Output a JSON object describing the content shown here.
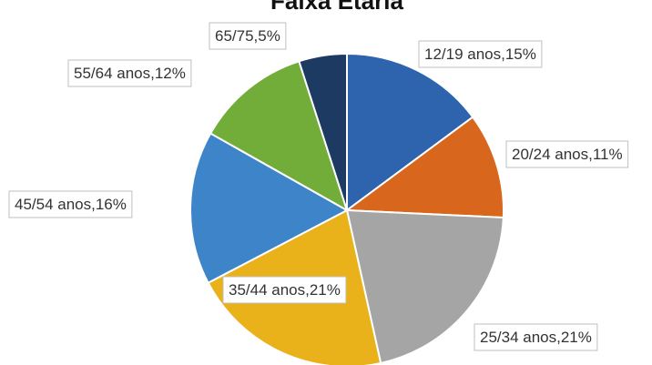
{
  "chart_data": {
    "type": "pie",
    "title": "Faixa Etária",
    "slices": [
      {
        "label": "12/19 anos,15%",
        "value": 15,
        "color": "#2e63ad"
      },
      {
        "label": "20/24 anos,11%",
        "value": 11,
        "color": "#d8661c"
      },
      {
        "label": "25/34 anos,21%",
        "value": 21,
        "color": "#a5a5a5"
      },
      {
        "label": "35/44 anos,21%",
        "value": 21,
        "color": "#e9b21b"
      },
      {
        "label": "45/54 anos,16%",
        "value": 16,
        "color": "#3e84c9"
      },
      {
        "label": "55/64 anos,12%",
        "value": 12,
        "color": "#72ad3a"
      },
      {
        "label": "65/75,5%",
        "value": 5,
        "color": "#1c3a62"
      }
    ]
  }
}
